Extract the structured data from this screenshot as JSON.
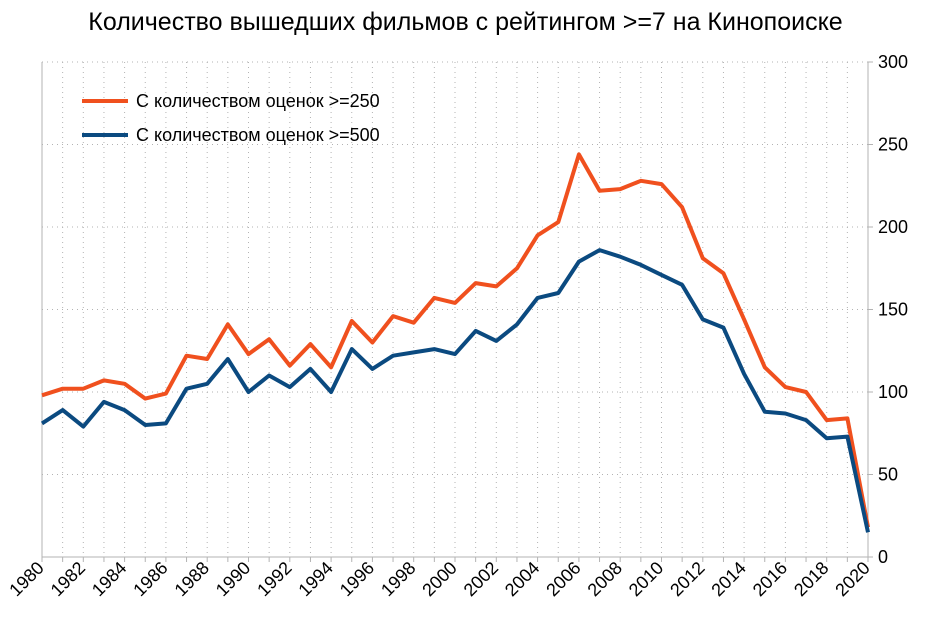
{
  "chart_data": {
    "type": "line",
    "title": "Количество вышедших фильмов с рейтингом >=7 на Кинопоиске",
    "xlabel": "",
    "ylabel": "",
    "x": [
      1980,
      1981,
      1982,
      1983,
      1984,
      1985,
      1986,
      1987,
      1988,
      1989,
      1990,
      1991,
      1992,
      1993,
      1994,
      1995,
      1996,
      1997,
      1998,
      1999,
      2000,
      2001,
      2002,
      2003,
      2004,
      2005,
      2006,
      2007,
      2008,
      2009,
      2010,
      2011,
      2012,
      2013,
      2014,
      2015,
      2016,
      2017,
      2018,
      2019,
      2020
    ],
    "x_tick_labels": [
      "1980",
      "1982",
      "1984",
      "1986",
      "1988",
      "1990",
      "1992",
      "1994",
      "1996",
      "1998",
      "2000",
      "2002",
      "2004",
      "2006",
      "2008",
      "2010",
      "2012",
      "2014",
      "2016",
      "2018",
      "2020"
    ],
    "y_tick_labels": [
      "0",
      "50",
      "100",
      "150",
      "200",
      "250",
      "300"
    ],
    "xlim": [
      1980,
      2020
    ],
    "ylim": [
      0,
      300
    ],
    "y_axis_side": "right",
    "grid": "dotted",
    "legend_position": "top-left",
    "series": [
      {
        "name": "С количеством оценок >=250",
        "color": "#f0501e",
        "values": [
          98,
          102,
          102,
          107,
          105,
          96,
          99,
          122,
          120,
          141,
          123,
          132,
          116,
          129,
          115,
          143,
          130,
          146,
          142,
          157,
          154,
          166,
          164,
          175,
          195,
          203,
          244,
          222,
          223,
          228,
          226,
          212,
          181,
          172,
          144,
          115,
          103,
          100,
          83,
          84,
          18
        ]
      },
      {
        "name": "С количеством оценок >=500",
        "color": "#0b4a80",
        "values": [
          81,
          89,
          79,
          94,
          89,
          80,
          81,
          102,
          105,
          120,
          100,
          110,
          103,
          114,
          100,
          126,
          114,
          122,
          124,
          126,
          123,
          137,
          131,
          141,
          157,
          160,
          179,
          186,
          182,
          177,
          171,
          165,
          144,
          139,
          111,
          88,
          87,
          83,
          72,
          73,
          15
        ]
      }
    ]
  }
}
